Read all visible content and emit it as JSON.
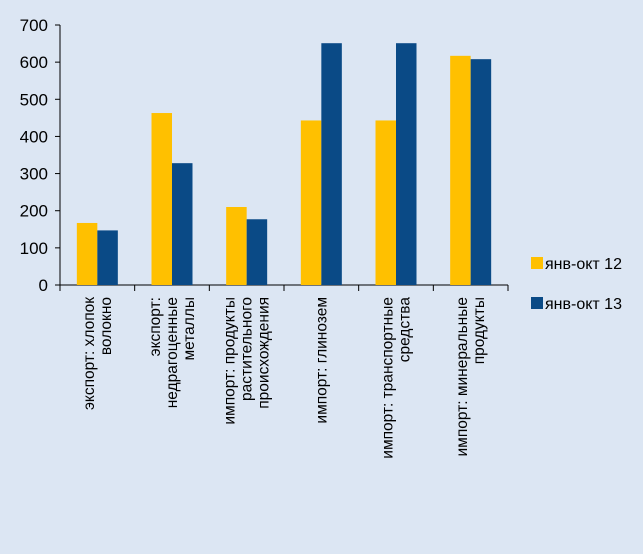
{
  "chart_data": {
    "type": "bar",
    "title": "",
    "xlabel": "",
    "ylabel": "",
    "ylim": [
      0,
      700
    ],
    "yticks": [
      0,
      100,
      200,
      300,
      400,
      500,
      600,
      700
    ],
    "grid": false,
    "legend_position": "right",
    "categories": [
      [
        "экспорт: хлопок",
        "волокно"
      ],
      [
        "экспорт:",
        "недрагоценные",
        "металлы"
      ],
      [
        "импорт: продукты",
        "растительного",
        "происхождения"
      ],
      [
        "импорт: глинозем"
      ],
      [
        "импорт: транспортные",
        "средства"
      ],
      [
        "импорт: минеральные",
        "продукты"
      ]
    ],
    "series": [
      {
        "name": "янв-окт 12",
        "color": "#ffc000",
        "values": [
          167,
          463,
          210,
          443,
          443,
          617
        ]
      },
      {
        "name": "янв-окт 13",
        "color": "#0a4a86",
        "values": [
          147,
          328,
          177,
          651,
          651,
          608
        ]
      }
    ]
  }
}
